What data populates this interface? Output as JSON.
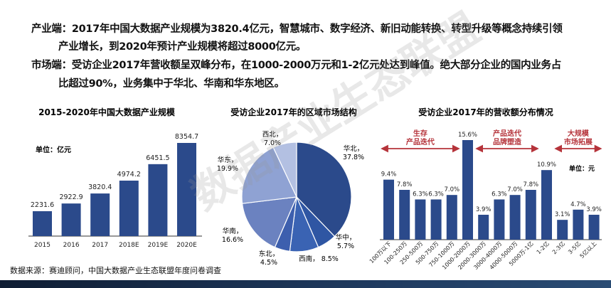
{
  "summary": {
    "industry_label": "产业端：",
    "industry_text_1": "2017年中国大数据产业规模为3820.4亿元，智慧城市、数字经济、新旧动能转换、转型升级等概念持续引领",
    "industry_text_2": "产业增长，到2020年预计产业规模将超过8000亿元。",
    "market_label": "市场端：",
    "market_text_1": "受访企业2017年营收额呈双峰分布，在1000-2000万元和1-2亿元处达到峰值。绝大部分企业的国内业务占",
    "market_text_2": "比超过90%，业务集中于华北、华南和华东地区。"
  },
  "source": "数据来源：赛迪顾问，中国大数据产业生态联盟年度问卷调查",
  "watermark": "数据产业生态联盟",
  "colors": {
    "bar": "#2b4a8b",
    "accent": "#b5333a"
  },
  "chart_data": [
    {
      "type": "bar",
      "title": "2015-2020年中国大数据产业规模",
      "unit": "单位：亿元",
      "categories": [
        "2015",
        "2016",
        "2017",
        "2018E",
        "2019E",
        "2020E"
      ],
      "values": [
        2231.6,
        2922.9,
        3820.4,
        4974.2,
        6451.5,
        8354.7
      ],
      "labels": [
        "2231.6",
        "2922.9",
        "3820.4",
        "4974.2",
        "6451.5",
        "8354.7"
      ],
      "ylim": [
        0,
        8500
      ],
      "grid": false
    },
    {
      "type": "pie",
      "title": "受访企业2017年的区域市场结构",
      "categories": [
        "华北",
        "华中",
        "西南",
        "东北",
        "华南",
        "华东",
        "西北"
      ],
      "values": [
        37.8,
        5.7,
        8.5,
        4.5,
        16.6,
        19.9,
        7.0
      ],
      "labels": [
        "37.8%",
        "5.7%",
        "8.5%",
        "4.5%",
        "16.6%",
        "19.9%",
        "7.0%"
      ],
      "colors": [
        "#2b4a8b",
        "#2f56a3",
        "#3a63b3",
        "#3d5fae",
        "#6b82c0",
        "#8fa2d3",
        "#b3c0e2"
      ]
    },
    {
      "type": "bar",
      "title": "受访企业2017年的营收额分布情况",
      "unit": "单位：元",
      "categories": [
        "100万以下",
        "100-250万",
        "250-500万",
        "500-750万",
        "750-1000万",
        "1000-2000万",
        "2000-3000万",
        "3000-4000万",
        "4000-5000万",
        "5000万-1亿",
        "1-2亿",
        "2-3亿",
        "3-5亿",
        "5亿以上"
      ],
      "values": [
        9.4,
        7.8,
        6.3,
        6.3,
        7.0,
        15.6,
        3.9,
        6.3,
        7.0,
        7.8,
        10.9,
        3.1,
        4.7,
        3.9
      ],
      "labels": [
        "9.4%",
        "7.8%",
        "6.3%",
        "6.3%",
        "7.0%",
        "15.6%",
        "3.9%",
        "6.3%",
        "7.0%",
        "7.8%",
        "10.9%",
        "3.1%",
        "4.7%",
        "3.9%"
      ],
      "ylim": [
        0,
        16
      ],
      "grid": false,
      "annotations": [
        {
          "lines": [
            "生存",
            "产品迭代"
          ],
          "from": "100万以下",
          "to": "750-1000万"
        },
        {
          "lines": [
            "产品迭代",
            "品牌塑造"
          ],
          "from": "2000-3000万",
          "to": "5000万-1亿"
        },
        {
          "lines": [
            "大规模",
            "市场拓展"
          ],
          "from": "2-3亿",
          "to": "5亿以上"
        }
      ]
    }
  ]
}
